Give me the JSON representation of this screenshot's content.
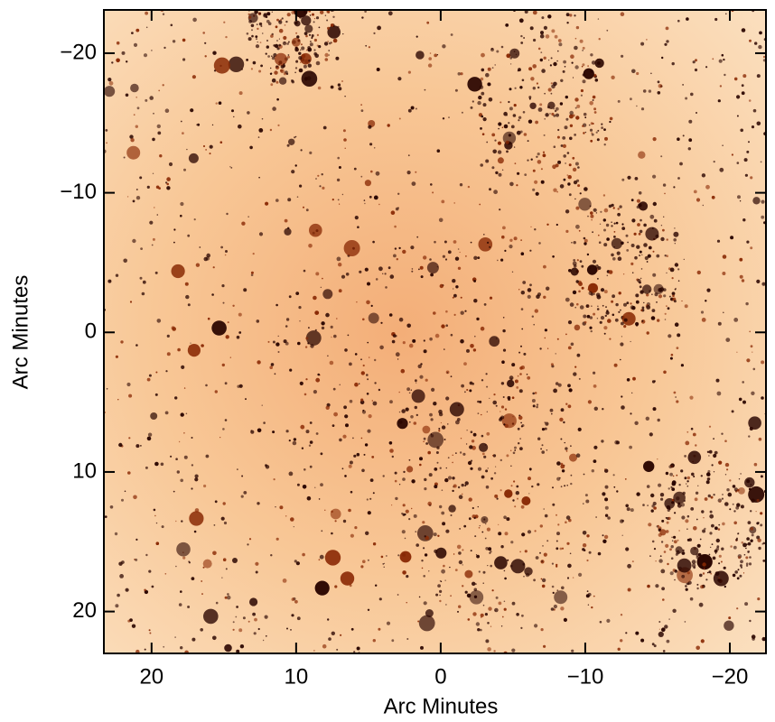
{
  "chart_data": {
    "type": "image",
    "xlabel": "Arc Minutes",
    "ylabel": "Arc Minutes",
    "xlim": [
      23.3,
      -22.5
    ],
    "ylim": [
      -23.1,
      23
    ],
    "xticks": [
      20,
      10,
      0,
      {
        "value": -10,
        "label": "−10"
      },
      {
        "value": -20,
        "label": "−20"
      }
    ],
    "yticks": [
      {
        "value": -20,
        "label": "−20"
      },
      {
        "value": -10,
        "label": "−10"
      },
      0,
      10,
      20
    ]
  }
}
